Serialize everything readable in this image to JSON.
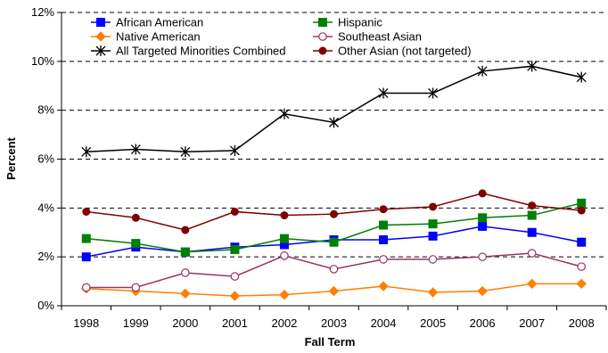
{
  "chart_data": {
    "type": "line",
    "xlabel": "Fall Term",
    "ylabel": "Percent",
    "categories": [
      "1998",
      "1999",
      "2000",
      "2001",
      "2002",
      "2003",
      "2004",
      "2005",
      "2006",
      "2007",
      "2008"
    ],
    "ylim": [
      0,
      12
    ],
    "yticks": [
      "0%",
      "2%",
      "4%",
      "6%",
      "8%",
      "10%",
      "12%"
    ],
    "grid": "horizontal dashed",
    "legend_position": "top",
    "series": [
      {
        "name": "African American",
        "color": "#0000ff",
        "marker": "square",
        "values": [
          2.0,
          2.4,
          2.2,
          2.4,
          2.5,
          2.7,
          2.7,
          2.85,
          3.25,
          3.0,
          2.6
        ]
      },
      {
        "name": "Hispanic",
        "color": "#008000",
        "marker": "square",
        "values": [
          2.75,
          2.55,
          2.2,
          2.3,
          2.75,
          2.6,
          3.3,
          3.35,
          3.6,
          3.7,
          4.2
        ]
      },
      {
        "name": "Native American",
        "color": "#ff7f00",
        "marker": "diamond",
        "values": [
          0.7,
          0.6,
          0.5,
          0.4,
          0.45,
          0.6,
          0.8,
          0.55,
          0.6,
          0.9,
          0.9
        ]
      },
      {
        "name": "Southeast Asian",
        "color": "#993366",
        "marker": "open-circle",
        "values": [
          0.75,
          0.75,
          1.35,
          1.2,
          2.05,
          1.5,
          1.9,
          1.9,
          2.0,
          2.15,
          1.6
        ]
      },
      {
        "name": "All Targeted Minorities Combined",
        "color": "#000000",
        "marker": "asterisk",
        "values": [
          6.3,
          6.4,
          6.3,
          6.35,
          7.85,
          7.5,
          8.7,
          8.7,
          9.6,
          9.8,
          9.35
        ]
      },
      {
        "name": "Other Asian (not targeted)",
        "color": "#800000",
        "marker": "circle",
        "values": [
          3.85,
          3.6,
          3.1,
          3.85,
          3.7,
          3.75,
          3.95,
          4.05,
          4.6,
          4.1,
          3.9
        ]
      }
    ]
  }
}
